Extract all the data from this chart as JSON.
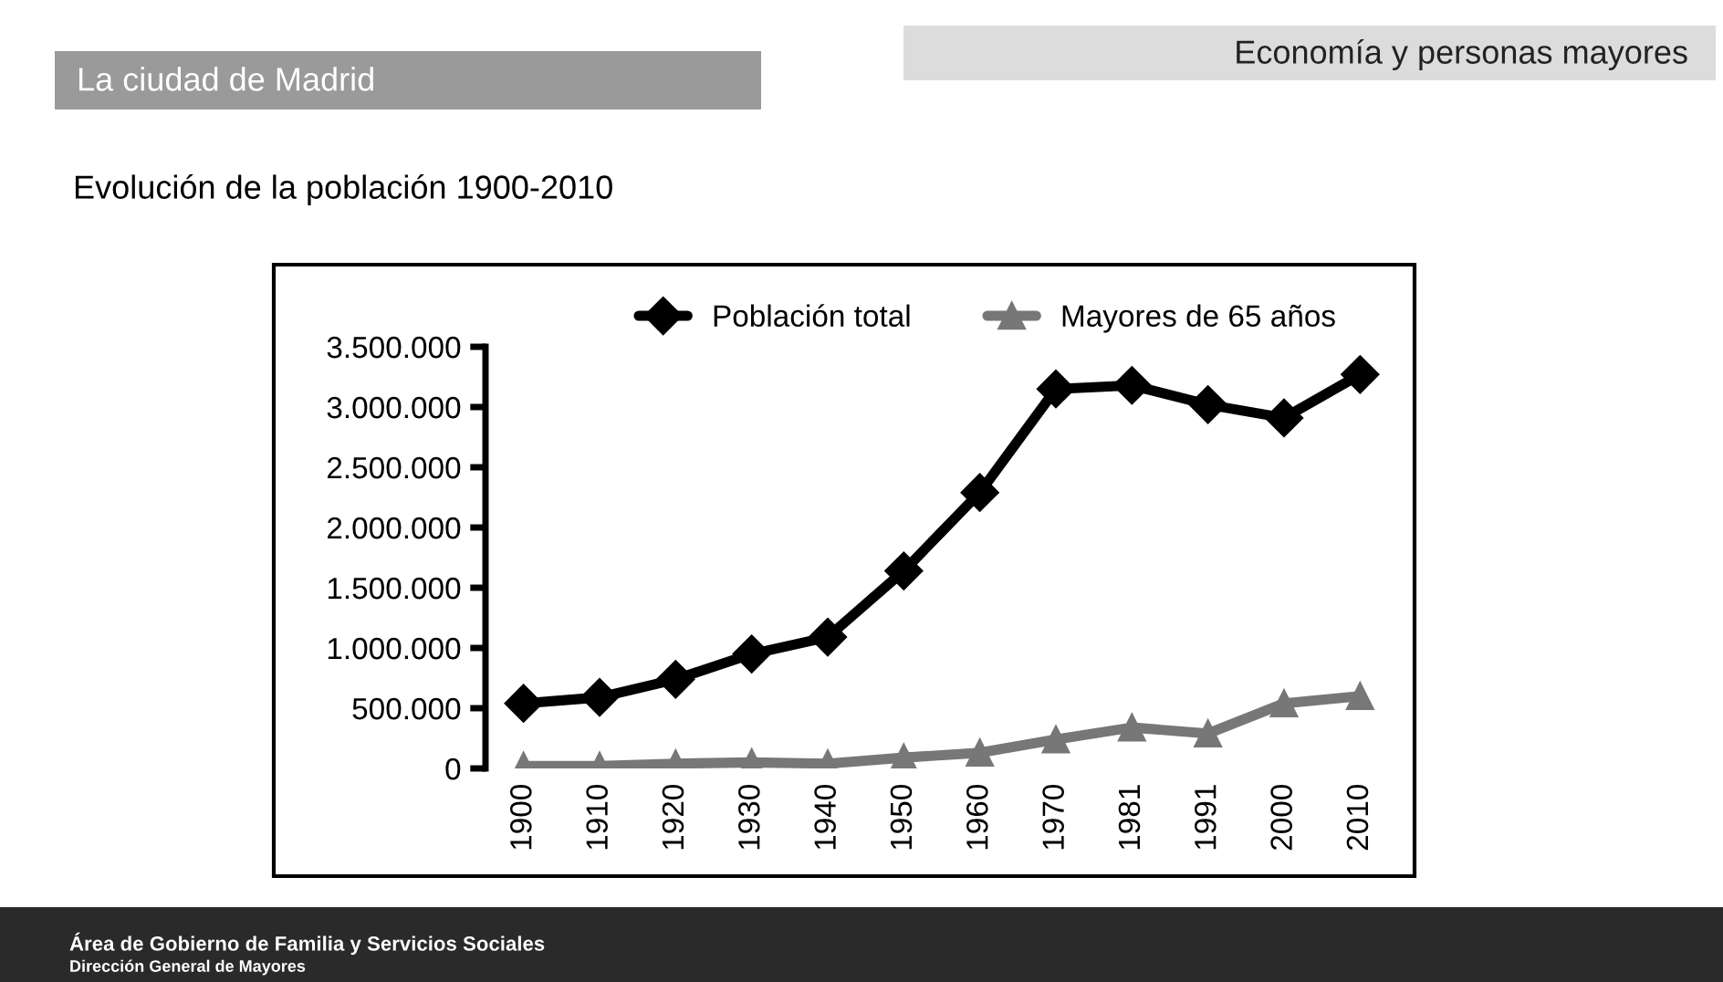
{
  "chart_data": {
    "type": "line",
    "title": "Evolución de la población 1900-2010",
    "subtitle": "La ciudad de Madrid",
    "annotations": [
      "Economía y personas mayores",
      "Área de Gobierno de Familia y Servicios Sociales",
      "Dirección General de Mayores"
    ],
    "categories": [
      "1900",
      "1910",
      "1920",
      "1930",
      "1940",
      "1950",
      "1960",
      "1970",
      "1981",
      "1991",
      "2000",
      "2010"
    ],
    "series": [
      {
        "name": "Población total",
        "color": "#000000",
        "marker": "diamond",
        "values": [
          540000,
          590000,
          740000,
          950000,
          1090000,
          1640000,
          2290000,
          3150000,
          3180000,
          3020000,
          2910000,
          3270000
        ]
      },
      {
        "name": "Mayores de 65 años",
        "color": "#777777",
        "marker": "triangle",
        "values": [
          20000,
          20000,
          40000,
          50000,
          40000,
          90000,
          130000,
          240000,
          340000,
          290000,
          540000,
          600000
        ]
      }
    ],
    "ylim": [
      0,
      3500000
    ],
    "yticks": [
      {
        "value": 0,
        "label": "0"
      },
      {
        "value": 500000,
        "label": "500.000"
      },
      {
        "value": 1000000,
        "label": "1.000.000"
      },
      {
        "value": 1500000,
        "label": "1.500.000"
      },
      {
        "value": 2000000,
        "label": "2.000.000"
      },
      {
        "value": 2500000,
        "label": "2.500.000"
      },
      {
        "value": 3000000,
        "label": "3.000.000"
      },
      {
        "value": 3500000,
        "label": "3.500.000"
      }
    ],
    "legend": "top",
    "grid": false,
    "line_style": "solid"
  }
}
